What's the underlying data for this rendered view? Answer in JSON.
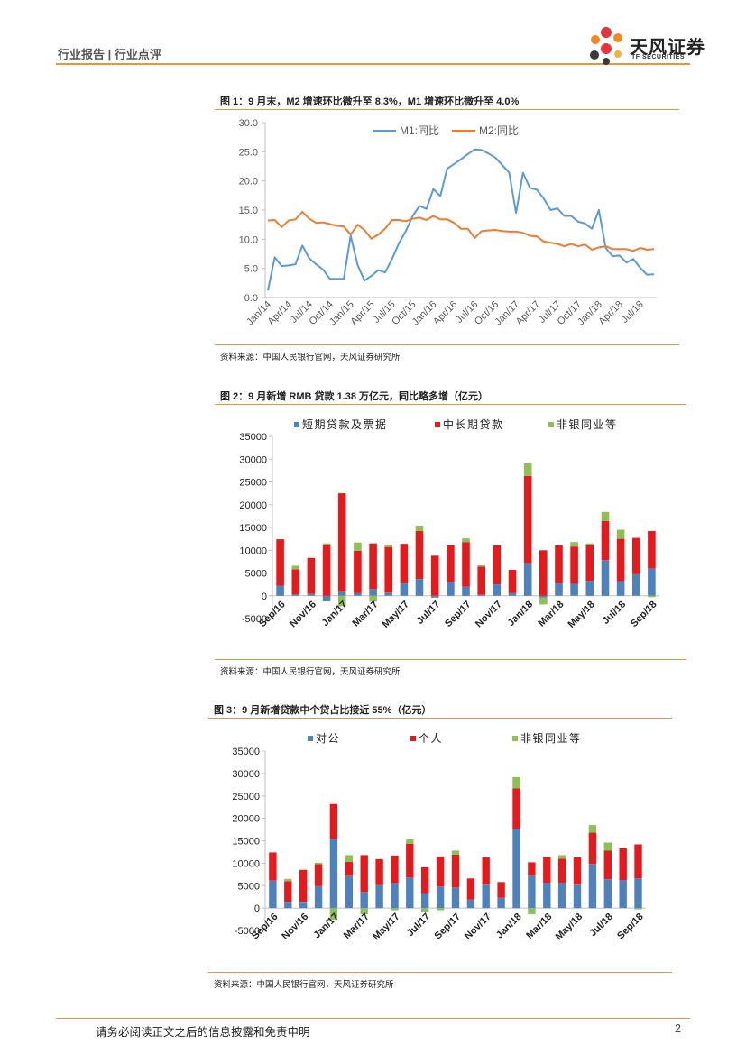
{
  "header": {
    "section": "行业报告 | 行业点评",
    "logo_cn": "天风证券",
    "logo_en": "TF SECURITIES",
    "colors": {
      "accent": "#e0954b"
    }
  },
  "figures": [
    {
      "title": "图 1：9 月末，M2 增速环比微升至 8.3%，M1 增速环比微升至 4.0%",
      "source": "资料来源：中国人民银行官网，天风证券研究所"
    },
    {
      "title": "图 2：9 月新增 RMB 贷款 1.38 万亿元，同比略多增（亿元）",
      "source": "资料来源：中国人民银行官网，天风证券研究所"
    },
    {
      "title": "图 3：9 月新增贷款中个贷占比接近 55%（亿元）",
      "source": "资料来源：中国人民银行官网，天风证券研究所"
    }
  ],
  "footer": {
    "disclaimer": "请务必阅读正文之后的信息披露和免责申明",
    "page": "2"
  },
  "chart_data": [
    {
      "type": "line",
      "title": "图 1：9 月末，M2 增速环比微升至 8.3%，M1 增速环比微升至 4.0%",
      "ylim": [
        0,
        30
      ],
      "yticks": [
        "0.0",
        "5.0",
        "10.0",
        "15.0",
        "20.0",
        "25.0",
        "30.0"
      ],
      "xticks": [
        "Jan/14",
        "Apr/14",
        "Jul/14",
        "Oct/14",
        "Jan/15",
        "Apr/15",
        "Jul/15",
        "Oct/15",
        "Jan/16",
        "Apr/16",
        "Jul/16",
        "Oct/16",
        "Jan/17",
        "Apr/17",
        "Jul/17",
        "Oct/17",
        "Jan/18",
        "Apr/18",
        "Jul/18"
      ],
      "legend": "top",
      "series": [
        {
          "name": "M1:同比",
          "color": "#5b9bd5",
          "values": [
            1.2,
            6.9,
            5.4,
            5.5,
            5.7,
            8.9,
            6.7,
            5.7,
            4.8,
            3.2,
            3.2,
            3.2,
            10.6,
            5.6,
            2.9,
            3.7,
            4.7,
            4.3,
            6.6,
            9.3,
            11.4,
            14.0,
            15.7,
            15.2,
            18.6,
            17.4,
            22.1,
            22.9,
            23.7,
            24.6,
            25.4,
            25.3,
            24.7,
            24.0,
            22.7,
            21.4,
            14.5,
            21.4,
            18.8,
            18.5,
            17.0,
            15.0,
            15.3,
            14.0,
            14.0,
            13.0,
            12.7,
            11.8,
            15.0,
            8.5,
            7.1,
            7.2,
            6.0,
            6.6,
            5.1,
            3.9,
            4.0
          ]
        },
        {
          "name": "M2:同比",
          "color": "#ed7d31",
          "values": [
            13.2,
            13.3,
            12.1,
            13.2,
            13.4,
            14.7,
            13.5,
            12.8,
            12.9,
            12.6,
            12.3,
            12.2,
            10.8,
            12.5,
            11.6,
            10.1,
            10.8,
            11.8,
            13.3,
            13.3,
            13.1,
            13.5,
            13.7,
            13.3,
            14.0,
            13.4,
            13.4,
            12.8,
            11.8,
            11.8,
            10.2,
            11.4,
            11.5,
            11.6,
            11.4,
            11.3,
            11.3,
            11.1,
            10.6,
            10.5,
            9.6,
            9.4,
            9.2,
            8.8,
            9.2,
            8.8,
            9.1,
            8.2,
            8.6,
            8.8,
            8.3,
            8.3,
            8.3,
            8.0,
            8.5,
            8.2,
            8.3
          ]
        }
      ]
    },
    {
      "type": "bar",
      "stacked": true,
      "title": "图 2：9 月新增 RMB 贷款 1.38 万亿元，同比略多增（亿元）",
      "ylim": [
        -5000,
        35000
      ],
      "yticks": [
        "-5000",
        "0",
        "5000",
        "10000",
        "15000",
        "20000",
        "25000",
        "30000",
        "35000"
      ],
      "categories": [
        "Sep/16",
        "Oct/16",
        "Nov/16",
        "Dec/16",
        "Jan/17",
        "Feb/17",
        "Mar/17",
        "Apr/17",
        "May/17",
        "Jun/17",
        "Jul/17",
        "Aug/17",
        "Sep/17",
        "Oct/17",
        "Nov/17",
        "Dec/17",
        "Jan/18",
        "Feb/18",
        "Mar/18",
        "Apr/18",
        "May/18",
        "Jun/18",
        "Jul/18",
        "Aug/18",
        "Sep/18"
      ],
      "xticks": [
        "Sep/16",
        "Nov/16",
        "Jan/17",
        "Mar/17",
        "May/17",
        "Jul/17",
        "Sep/17",
        "Nov/17",
        "Jan/18",
        "Mar/18",
        "May/18",
        "Jul/18",
        "Sep/18"
      ],
      "legend": "top",
      "series": [
        {
          "name": "短期贷款及票据",
          "color": "#4f81bd",
          "values": [
            2200,
            300,
            400,
            -1200,
            1000,
            600,
            1500,
            700,
            2700,
            3700,
            -400,
            3000,
            2000,
            200,
            2500,
            600,
            7200,
            -400,
            2700,
            2600,
            3300,
            7800,
            3200,
            4800,
            6000
          ]
        },
        {
          "name": "中长期贷款",
          "color": "#e41a1c",
          "values": [
            10200,
            5500,
            7900,
            11200,
            21500,
            9300,
            10000,
            10000,
            8700,
            10500,
            8800,
            8200,
            9800,
            6200,
            8600,
            5100,
            19100,
            10000,
            8400,
            8200,
            7900,
            8600,
            9300,
            7900,
            8200
          ]
        },
        {
          "name": "非银同业等",
          "color": "#8dc154",
          "values": [
            0,
            800,
            0,
            300,
            -2300,
            1800,
            -1300,
            500,
            0,
            1200,
            0,
            0,
            800,
            300,
            0,
            0,
            2800,
            -1500,
            0,
            1000,
            300,
            2000,
            2000,
            0,
            -300
          ]
        }
      ]
    },
    {
      "type": "bar",
      "stacked": true,
      "title": "图 3：9 月新增贷款中个贷占比接近 55%（亿元）",
      "ylim": [
        -5000,
        35000
      ],
      "yticks": [
        "-5000",
        "0",
        "5000",
        "10000",
        "15000",
        "20000",
        "25000",
        "30000",
        "35000"
      ],
      "categories": [
        "Sep/16",
        "Oct/16",
        "Nov/16",
        "Dec/16",
        "Jan/17",
        "Feb/17",
        "Mar/17",
        "Apr/17",
        "May/17",
        "Jun/17",
        "Jul/17",
        "Aug/17",
        "Sep/17",
        "Oct/17",
        "Nov/17",
        "Dec/17",
        "Jan/18",
        "Feb/18",
        "Mar/18",
        "Apr/18",
        "May/18",
        "Jun/18",
        "Jul/18",
        "Aug/18",
        "Sep/18"
      ],
      "xticks": [
        "Sep/16",
        "Nov/16",
        "Jan/17",
        "Mar/17",
        "May/17",
        "Jul/17",
        "Sep/17",
        "Nov/17",
        "Jan/18",
        "Mar/18",
        "May/18",
        "Jul/18",
        "Sep/18"
      ],
      "legend": "top",
      "series": [
        {
          "name": "对公",
          "color": "#4f81bd",
          "values": [
            6100,
            1400,
            1400,
            4900,
            15500,
            7200,
            3600,
            5100,
            5500,
            6800,
            3300,
            4800,
            4600,
            1900,
            5200,
            2300,
            17700,
            7300,
            5600,
            5600,
            5200,
            9800,
            6400,
            6200,
            6600
          ]
        },
        {
          "name": "个人",
          "color": "#e41a1c",
          "values": [
            6300,
            4600,
            7100,
            4900,
            7700,
            3100,
            8200,
            5800,
            6200,
            7500,
            5800,
            6700,
            7300,
            4700,
            6100,
            3500,
            9000,
            2900,
            5800,
            5400,
            6100,
            7000,
            6400,
            7100,
            7600
          ]
        },
        {
          "name": "非银同业等",
          "color": "#8dc154",
          "values": [
            0,
            500,
            0,
            300,
            -2600,
            1500,
            -1400,
            0,
            -500,
            1000,
            -800,
            -500,
            900,
            0,
            0,
            0,
            2500,
            -1400,
            0,
            800,
            0,
            1700,
            1800,
            0,
            -300
          ]
        }
      ]
    }
  ]
}
